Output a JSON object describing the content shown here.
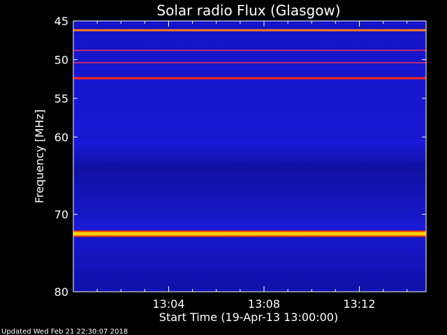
{
  "chart_data": {
    "type": "heatmap",
    "title": "Solar radio Flux (Glasgow)",
    "xlabel": "Start Time (19-Apr-13 13:00:00)",
    "ylabel": "Frequency [MHz]",
    "xlim_minutes": [
      0,
      14.8
    ],
    "x_ticks": [
      {
        "label": "13:04",
        "minute": 4
      },
      {
        "label": "13:08",
        "minute": 8
      },
      {
        "label": "13:12",
        "minute": 12
      }
    ],
    "ylim_mhz": [
      45,
      80
    ],
    "y_ticks": [
      {
        "label": "45",
        "mhz": 45
      },
      {
        "label": "50",
        "mhz": 50
      },
      {
        "label": "55",
        "mhz": 55
      },
      {
        "label": "60",
        "mhz": 60
      },
      {
        "label": "70",
        "mhz": 70
      },
      {
        "label": "80",
        "mhz": 80
      }
    ],
    "background_color": "#1a1ad8",
    "interference_lines": [
      {
        "mhz": 46.2,
        "intensity": "high",
        "color": "#ff7a1a"
      },
      {
        "mhz": 48.8,
        "intensity": "low",
        "color": "#c0287a"
      },
      {
        "mhz": 50.4,
        "intensity": "low",
        "color": "#c0287a"
      },
      {
        "mhz": 52.4,
        "intensity": "high",
        "color": "#ff2a10"
      },
      {
        "mhz": 72.5,
        "intensity": "very-high",
        "color": "#ffd000"
      }
    ],
    "footer": "Updated Wed Feb 21 22:30:07 2018"
  }
}
